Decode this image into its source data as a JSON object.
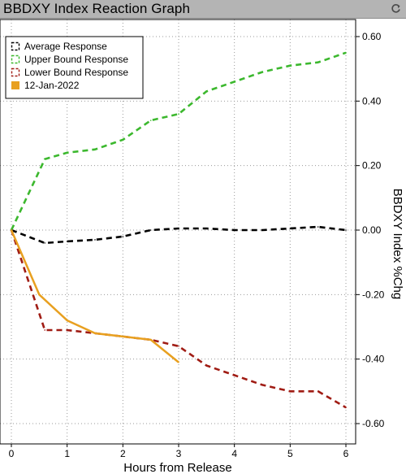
{
  "header": {
    "title": "BBDXY Index Reaction Graph",
    "refresh_icon": "refresh-icon"
  },
  "chart_data": {
    "type": "line",
    "title": "",
    "xlabel": "Hours from Release",
    "ylabel": "BBDXY Index %Chg",
    "xlim": [
      0,
      6
    ],
    "ylim": [
      -0.62,
      0.62
    ],
    "x_ticks": [
      "0",
      "1",
      "2",
      "3",
      "4",
      "5",
      "6"
    ],
    "y_ticks": [
      "0.60",
      "0.40",
      "0.20",
      "0.00",
      "-0.20",
      "-0.40",
      "-0.60"
    ],
    "grid": true,
    "legend_position": "top-left",
    "series": [
      {
        "name": "Average Response",
        "color": "#000000",
        "style": "dashed",
        "x": [
          0,
          0.6,
          1.0,
          1.5,
          2.0,
          2.5,
          3.0,
          3.5,
          4.0,
          4.5,
          5.0,
          5.5,
          6.0
        ],
        "values": [
          0.0,
          -0.04,
          -0.035,
          -0.03,
          -0.02,
          0.0,
          0.005,
          0.005,
          0.0,
          0.0,
          0.005,
          0.01,
          0.0
        ]
      },
      {
        "name": "Upper Bound Response",
        "color": "#3cb82e",
        "style": "dashed",
        "x": [
          0,
          0.6,
          1.0,
          1.5,
          2.0,
          2.5,
          3.0,
          3.5,
          4.0,
          4.5,
          5.0,
          5.5,
          6.0
        ],
        "values": [
          0.0,
          0.22,
          0.24,
          0.25,
          0.28,
          0.34,
          0.36,
          0.43,
          0.46,
          0.49,
          0.51,
          0.52,
          0.55
        ]
      },
      {
        "name": "Lower Bound Response",
        "color": "#a01c14",
        "style": "dashed",
        "x": [
          0,
          0.6,
          1.0,
          1.5,
          2.0,
          2.5,
          3.0,
          3.5,
          4.0,
          4.5,
          5.0,
          5.5,
          6.0
        ],
        "values": [
          0.0,
          -0.31,
          -0.31,
          -0.32,
          -0.33,
          -0.34,
          -0.36,
          -0.42,
          -0.45,
          -0.48,
          -0.5,
          -0.5,
          -0.55
        ]
      },
      {
        "name": "12-Jan-2022",
        "color": "#e8a020",
        "style": "solid",
        "x": [
          0,
          0.5,
          1.0,
          1.5,
          2.0,
          2.5,
          3.0
        ],
        "values": [
          0.0,
          -0.2,
          -0.28,
          -0.32,
          -0.33,
          -0.34,
          -0.41
        ]
      }
    ]
  }
}
